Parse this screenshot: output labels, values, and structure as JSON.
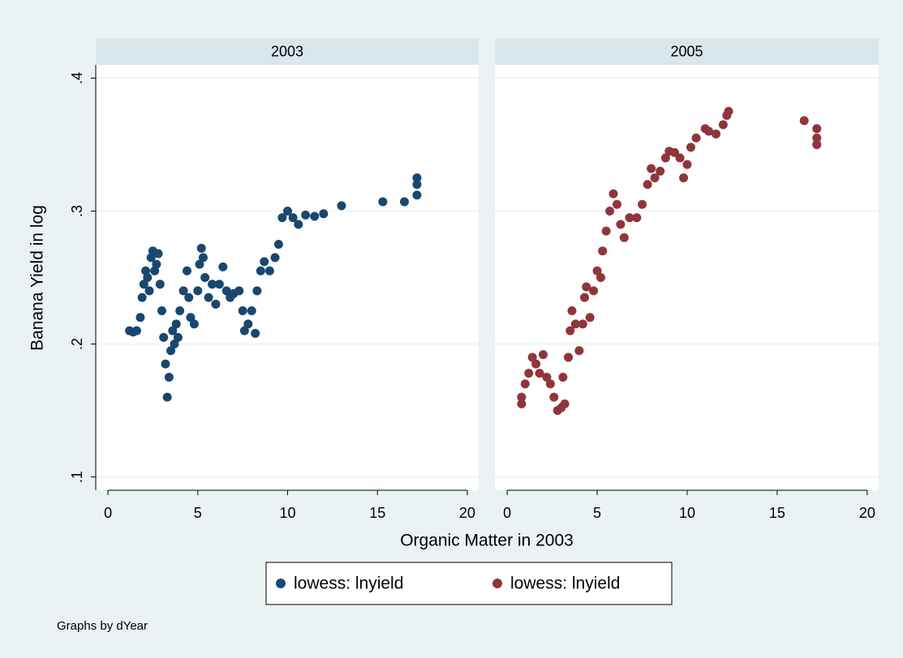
{
  "chart_data": [
    {
      "type": "scatter",
      "title": "2003",
      "xlim": [
        -0.5,
        20.5
      ],
      "xticks": [
        0,
        5,
        10,
        15,
        20
      ],
      "ylim": [
        0.09,
        0.41
      ],
      "yticks": [
        {
          "value": 0.1,
          "label": ".1"
        },
        {
          "value": 0.2,
          "label": ".2"
        },
        {
          "value": 0.3,
          "label": ".3"
        },
        {
          "value": 0.4,
          "label": ".4"
        }
      ],
      "grid": true,
      "series": [
        {
          "name": "lowess: lnyield",
          "color": "#1a476f",
          "x": [
            1.2,
            1.4,
            1.6,
            1.8,
            1.9,
            2.0,
            2.1,
            2.2,
            2.3,
            2.4,
            2.5,
            2.6,
            2.7,
            2.8,
            2.9,
            3.0,
            3.1,
            3.2,
            3.3,
            3.4,
            3.5,
            3.6,
            3.7,
            3.8,
            3.9,
            4.0,
            4.2,
            4.4,
            4.5,
            4.6,
            4.8,
            5.0,
            5.1,
            5.2,
            5.3,
            5.4,
            5.6,
            5.8,
            6.0,
            6.2,
            6.4,
            6.6,
            6.8,
            7.0,
            7.3,
            7.5,
            7.6,
            7.8,
            8.0,
            8.2,
            8.3,
            8.5,
            8.7,
            9.0,
            9.3,
            9.5,
            9.7,
            10.0,
            10.3,
            10.6,
            11.0,
            11.5,
            12.0,
            13.0,
            15.3,
            16.5,
            17.2,
            17.2,
            17.2
          ],
          "values": [
            0.21,
            0.209,
            0.21,
            0.22,
            0.235,
            0.245,
            0.255,
            0.25,
            0.24,
            0.265,
            0.27,
            0.255,
            0.26,
            0.268,
            0.245,
            0.225,
            0.205,
            0.185,
            0.16,
            0.175,
            0.195,
            0.21,
            0.2,
            0.215,
            0.205,
            0.225,
            0.24,
            0.255,
            0.235,
            0.22,
            0.215,
            0.24,
            0.26,
            0.272,
            0.265,
            0.25,
            0.235,
            0.245,
            0.23,
            0.245,
            0.258,
            0.24,
            0.235,
            0.238,
            0.24,
            0.225,
            0.21,
            0.215,
            0.225,
            0.208,
            0.24,
            0.255,
            0.262,
            0.255,
            0.265,
            0.275,
            0.295,
            0.3,
            0.295,
            0.29,
            0.297,
            0.296,
            0.298,
            0.304,
            0.307,
            0.307,
            0.312,
            0.32,
            0.325
          ]
        }
      ]
    },
    {
      "type": "scatter",
      "title": "2005",
      "xlim": [
        -0.5,
        20.5
      ],
      "xticks": [
        0,
        5,
        10,
        15,
        20
      ],
      "ylim": [
        0.09,
        0.41
      ],
      "yticks": [
        {
          "value": 0.1,
          "label": ".1"
        },
        {
          "value": 0.2,
          "label": ".2"
        },
        {
          "value": 0.3,
          "label": ".3"
        },
        {
          "value": 0.4,
          "label": ".4"
        }
      ],
      "grid": true,
      "series": [
        {
          "name": "lowess: lnyield",
          "color": "#90353b",
          "x": [
            0.8,
            0.8,
            1.0,
            1.2,
            1.4,
            1.6,
            1.8,
            2.0,
            2.2,
            2.4,
            2.6,
            2.8,
            3.0,
            3.1,
            3.2,
            3.4,
            3.5,
            3.6,
            3.8,
            4.0,
            4.2,
            4.3,
            4.4,
            4.6,
            4.8,
            5.0,
            5.2,
            5.3,
            5.5,
            5.7,
            5.9,
            6.1,
            6.3,
            6.5,
            6.8,
            7.2,
            7.5,
            7.8,
            8.0,
            8.2,
            8.5,
            8.8,
            9.0,
            9.3,
            9.6,
            9.8,
            10.0,
            10.2,
            10.5,
            11.0,
            11.2,
            11.6,
            12.0,
            12.2,
            12.3,
            16.5,
            17.2,
            17.2,
            17.2
          ],
          "values": [
            0.155,
            0.16,
            0.17,
            0.178,
            0.19,
            0.185,
            0.178,
            0.192,
            0.175,
            0.17,
            0.16,
            0.15,
            0.152,
            0.175,
            0.155,
            0.19,
            0.21,
            0.225,
            0.215,
            0.195,
            0.215,
            0.235,
            0.243,
            0.22,
            0.24,
            0.255,
            0.25,
            0.27,
            0.285,
            0.3,
            0.313,
            0.305,
            0.29,
            0.28,
            0.295,
            0.295,
            0.305,
            0.32,
            0.332,
            0.325,
            0.33,
            0.34,
            0.345,
            0.344,
            0.34,
            0.325,
            0.335,
            0.348,
            0.355,
            0.362,
            0.36,
            0.358,
            0.365,
            0.372,
            0.375,
            0.368,
            0.362,
            0.355,
            0.35
          ]
        }
      ]
    }
  ],
  "y_label": "Banana Yield in log",
  "x_label": "Organic Matter in 2003",
  "note": "Graphs by dYear"
}
